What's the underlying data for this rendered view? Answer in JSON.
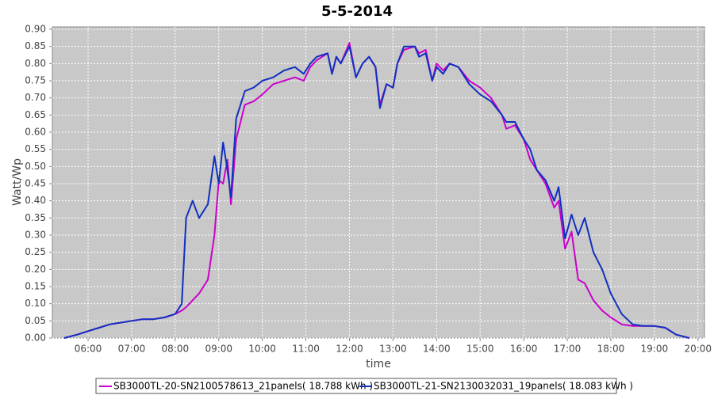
{
  "chart_data": {
    "type": "line",
    "title": "5-5-2014",
    "x_label": "time",
    "y_label": "Watt/Wp",
    "x": [
      5.45,
      5.75,
      6.0,
      6.25,
      6.5,
      6.75,
      7.0,
      7.25,
      7.5,
      7.75,
      8.0,
      8.15,
      8.25,
      8.4,
      8.55,
      8.75,
      8.9,
      9.0,
      9.1,
      9.2,
      9.28,
      9.4,
      9.6,
      9.8,
      10.0,
      10.25,
      10.5,
      10.75,
      10.95,
      11.1,
      11.25,
      11.5,
      11.6,
      11.7,
      11.8,
      12.0,
      12.15,
      12.3,
      12.45,
      12.6,
      12.7,
      12.85,
      13.0,
      13.1,
      13.25,
      13.5,
      13.6,
      13.75,
      13.9,
      14.0,
      14.15,
      14.3,
      14.5,
      14.75,
      15.0,
      15.25,
      15.5,
      15.6,
      15.8,
      16.0,
      16.15,
      16.3,
      16.5,
      16.7,
      16.8,
      16.95,
      17.1,
      17.25,
      17.4,
      17.6,
      17.8,
      18.0,
      18.25,
      18.5,
      18.75,
      19.0,
      19.25,
      19.5,
      19.8
    ],
    "series": [
      {
        "name": "SB3000TL-20-SN2100578613_21panels( 18.788 kWh )",
        "color": "#cc00cc",
        "values": [
          0.0,
          0.01,
          0.02,
          0.03,
          0.04,
          0.045,
          0.05,
          0.055,
          0.055,
          0.06,
          0.07,
          0.08,
          0.09,
          0.11,
          0.13,
          0.17,
          0.3,
          0.46,
          0.45,
          0.52,
          0.39,
          0.58,
          0.68,
          0.69,
          0.71,
          0.74,
          0.75,
          0.76,
          0.75,
          0.79,
          0.81,
          0.83,
          0.77,
          0.82,
          0.8,
          0.86,
          0.76,
          0.8,
          0.82,
          0.79,
          0.68,
          0.74,
          0.73,
          0.8,
          0.84,
          0.85,
          0.83,
          0.84,
          0.75,
          0.8,
          0.78,
          0.8,
          0.79,
          0.75,
          0.73,
          0.7,
          0.65,
          0.61,
          0.62,
          0.58,
          0.52,
          0.49,
          0.45,
          0.38,
          0.4,
          0.26,
          0.31,
          0.17,
          0.16,
          0.11,
          0.08,
          0.06,
          0.04,
          0.035,
          0.035,
          0.035,
          0.03,
          0.01,
          0.0
        ]
      },
      {
        "name": "SB3000TL-21-SN2130032031_19panels( 18.083 kWh )",
        "color": "#1030c0",
        "values": [
          0.0,
          0.01,
          0.02,
          0.03,
          0.04,
          0.045,
          0.05,
          0.055,
          0.055,
          0.06,
          0.07,
          0.1,
          0.35,
          0.4,
          0.35,
          0.39,
          0.53,
          0.45,
          0.57,
          0.49,
          0.41,
          0.64,
          0.72,
          0.73,
          0.75,
          0.76,
          0.78,
          0.79,
          0.77,
          0.8,
          0.82,
          0.83,
          0.77,
          0.82,
          0.8,
          0.85,
          0.76,
          0.8,
          0.82,
          0.79,
          0.67,
          0.74,
          0.73,
          0.8,
          0.85,
          0.85,
          0.82,
          0.83,
          0.75,
          0.79,
          0.77,
          0.8,
          0.79,
          0.74,
          0.71,
          0.69,
          0.65,
          0.63,
          0.63,
          0.58,
          0.55,
          0.49,
          0.46,
          0.4,
          0.44,
          0.29,
          0.36,
          0.3,
          0.35,
          0.25,
          0.2,
          0.13,
          0.07,
          0.04,
          0.035,
          0.035,
          0.03,
          0.01,
          0.0
        ]
      }
    ],
    "xlim": [
      5.18,
      20.15
    ],
    "xticks": [
      {
        "value": 6,
        "label": "06:00"
      },
      {
        "value": 7,
        "label": "07:00"
      },
      {
        "value": 8,
        "label": "08:00"
      },
      {
        "value": 9,
        "label": "09:00"
      },
      {
        "value": 10,
        "label": "10:00"
      },
      {
        "value": 11,
        "label": "11:00"
      },
      {
        "value": 12,
        "label": "12:00"
      },
      {
        "value": 13,
        "label": "13:00"
      },
      {
        "value": 14,
        "label": "14:00"
      },
      {
        "value": 15,
        "label": "15:00"
      },
      {
        "value": 16,
        "label": "16:00"
      },
      {
        "value": 17,
        "label": "17:00"
      },
      {
        "value": 18,
        "label": "18:00"
      },
      {
        "value": 19,
        "label": "19:00"
      },
      {
        "value": 20,
        "label": "20:00"
      }
    ],
    "ylim": [
      0,
      0.9
    ],
    "yticks": [
      {
        "value": 0,
        "label": "0.00"
      },
      {
        "value": 0.05,
        "label": "0.05"
      },
      {
        "value": 0.1,
        "label": "0.10"
      },
      {
        "value": 0.15,
        "label": "0.15"
      },
      {
        "value": 0.2,
        "label": "0.20"
      },
      {
        "value": 0.25,
        "label": "0.25"
      },
      {
        "value": 0.3,
        "label": "0.30"
      },
      {
        "value": 0.35,
        "label": "0.35"
      },
      {
        "value": 0.4,
        "label": "0.40"
      },
      {
        "value": 0.45,
        "label": "0.45"
      },
      {
        "value": 0.5,
        "label": "0.50"
      },
      {
        "value": 0.55,
        "label": "0.55"
      },
      {
        "value": 0.6,
        "label": "0.60"
      },
      {
        "value": 0.65,
        "label": "0.65"
      },
      {
        "value": 0.7,
        "label": "0.70"
      },
      {
        "value": 0.75,
        "label": "0.75"
      },
      {
        "value": 0.8,
        "label": "0.80"
      },
      {
        "value": 0.85,
        "label": "0.85"
      },
      {
        "value": 0.9,
        "label": "0.90"
      }
    ],
    "grid": true,
    "legend": "bottom"
  }
}
